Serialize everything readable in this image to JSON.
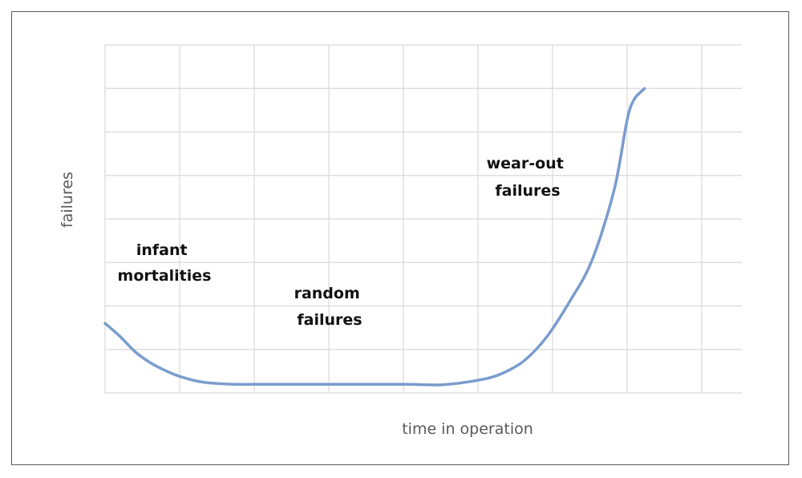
{
  "chart_data": {
    "type": "line",
    "title": "",
    "xlabel": "time in operation",
    "ylabel": "failures",
    "xlim": [
      0,
      8.5
    ],
    "ylim": [
      0,
      8
    ],
    "grid": true,
    "legend": "none",
    "line_color": "#7a9ccd",
    "grid_color": "#d9d9d9",
    "series": [
      {
        "x": [
          0,
          0.2,
          0.4,
          0.6,
          0.8,
          1.0,
          1.3,
          1.7,
          2.0,
          2.5,
          3.0,
          3.5,
          4.0,
          4.5,
          5.0,
          5.3,
          5.6,
          5.9,
          6.2,
          6.5,
          6.8,
          7.0,
          7.2
        ],
        "y": [
          1.6,
          1.3,
          0.95,
          0.7,
          0.52,
          0.38,
          0.25,
          0.2,
          0.2,
          0.2,
          0.2,
          0.2,
          0.2,
          0.19,
          0.3,
          0.45,
          0.75,
          1.3,
          2.1,
          3.05,
          4.7,
          6.5,
          7.0
        ]
      }
    ],
    "annotations": [
      {
        "text": [
          "infant",
          "mortalities"
        ]
      },
      {
        "text": [
          "random",
          "failures"
        ]
      },
      {
        "text": [
          "wear-out",
          "failures"
        ]
      }
    ]
  }
}
